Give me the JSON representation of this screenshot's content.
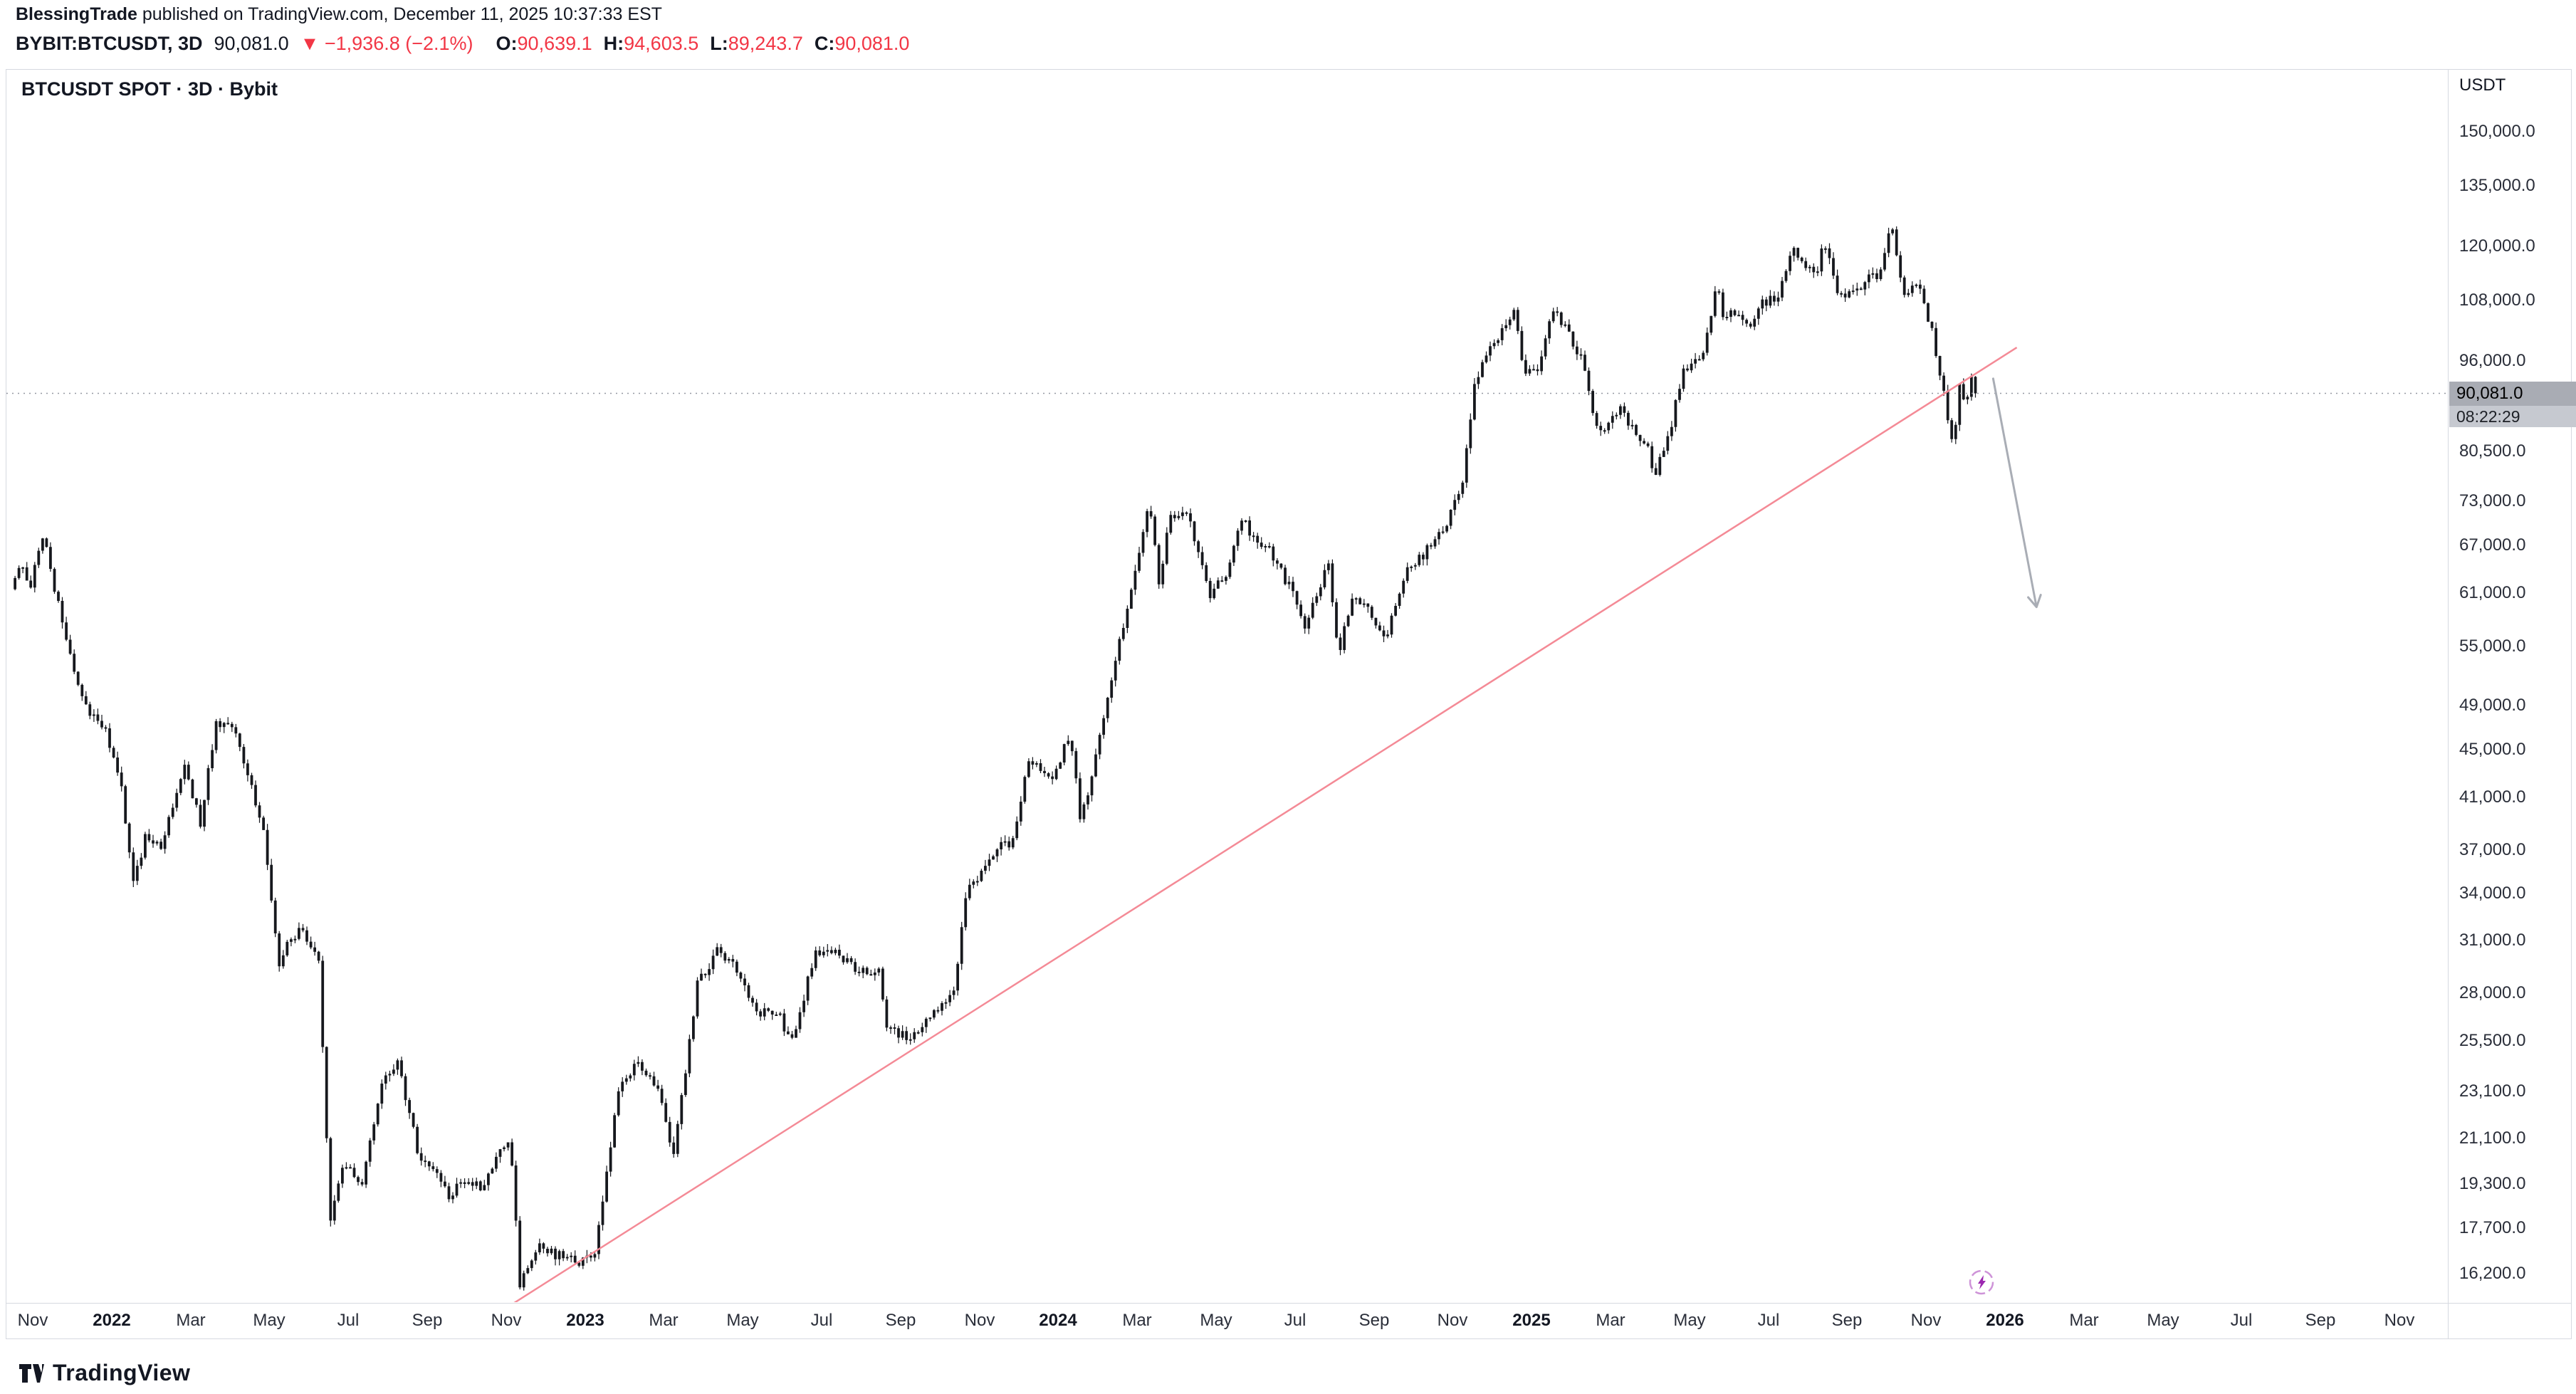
{
  "header": {
    "author": "BlessingTrade",
    "published_text": " published on TradingView.com, December 11, 2025 10:37:33 EST",
    "symbol_line": "BYBIT:BTCUSDT, 3D",
    "last_price": "90,081.0",
    "down_arrow": "▼",
    "change": "−1,936.8 (−2.1%)",
    "ohlc": [
      {
        "label": "O",
        "value": "90,639.1"
      },
      {
        "label": "H",
        "value": "94,603.5"
      },
      {
        "label": "L",
        "value": "89,243.7"
      },
      {
        "label": "C",
        "value": "90,081.0"
      }
    ]
  },
  "chart": {
    "title": "BTCUSDT SPOT · 3D · Bybit",
    "axis_currency": "USDT",
    "price_badge": {
      "price": "90,081.0",
      "countdown": "08:22:29"
    },
    "colors": {
      "down_red": "#f23645",
      "candle": "#16181d",
      "trendline": "#f48a96",
      "arrow": "#a9adb5",
      "last_price_line": "#9598a1",
      "boost_purple": "#9c27b0",
      "axis_text": "#2a2e39",
      "border": "#d6d9e0"
    }
  },
  "footer": {
    "logo_text": "TradingView"
  },
  "chart_data": {
    "type": "candlestick",
    "symbol": "BYBIT:BTCUSDT",
    "exchange": "Bybit",
    "market": "SPOT",
    "interval": "3D",
    "scale": "log",
    "last_price": 90081,
    "ylim": [
      14270,
      169600
    ],
    "y_ticks": [
      150000,
      135000,
      120000,
      108000,
      96000,
      80500,
      73000,
      67000,
      61000,
      55000,
      49000,
      45000,
      41000,
      37000,
      34000,
      31000,
      28000,
      25500,
      23100,
      21100,
      19300,
      17700,
      16200
    ],
    "x_ticks": [
      {
        "label": "Nov",
        "m": 0
      },
      {
        "label": "2022",
        "m": 2,
        "year": true
      },
      {
        "label": "Mar",
        "m": 4
      },
      {
        "label": "May",
        "m": 6
      },
      {
        "label": "Jul",
        "m": 8
      },
      {
        "label": "Sep",
        "m": 10
      },
      {
        "label": "Nov",
        "m": 12
      },
      {
        "label": "2023",
        "m": 14,
        "year": true
      },
      {
        "label": "Mar",
        "m": 16
      },
      {
        "label": "May",
        "m": 18
      },
      {
        "label": "Jul",
        "m": 20
      },
      {
        "label": "Sep",
        "m": 22
      },
      {
        "label": "Nov",
        "m": 24
      },
      {
        "label": "2024",
        "m": 26,
        "year": true
      },
      {
        "label": "Mar",
        "m": 28
      },
      {
        "label": "May",
        "m": 30
      },
      {
        "label": "Jul",
        "m": 32
      },
      {
        "label": "Sep",
        "m": 34
      },
      {
        "label": "Nov",
        "m": 36
      },
      {
        "label": "2025",
        "m": 38,
        "year": true
      },
      {
        "label": "Mar",
        "m": 40
      },
      {
        "label": "May",
        "m": 42
      },
      {
        "label": "Jul",
        "m": 44
      },
      {
        "label": "Sep",
        "m": 46
      },
      {
        "label": "Nov",
        "m": 48
      },
      {
        "label": "2026",
        "m": 50,
        "year": true
      },
      {
        "label": "Mar",
        "m": 52
      },
      {
        "label": "May",
        "m": 54
      },
      {
        "label": "Jul",
        "m": 56
      },
      {
        "label": "Sep",
        "m": 58
      },
      {
        "label": "Nov",
        "m": 60
      }
    ],
    "path": [
      [
        -0.5,
        61500
      ],
      [
        -0.25,
        64500
      ],
      [
        0,
        62000
      ],
      [
        0.3,
        68500
      ],
      [
        0.8,
        57500
      ],
      [
        1.3,
        49500
      ],
      [
        1.9,
        46500
      ],
      [
        2.3,
        42000
      ],
      [
        2.6,
        34500
      ],
      [
        2.9,
        38000
      ],
      [
        3.3,
        37000
      ],
      [
        3.9,
        43500
      ],
      [
        4.3,
        39000
      ],
      [
        4.7,
        47800
      ],
      [
        5.2,
        46500
      ],
      [
        5.9,
        38500
      ],
      [
        6.3,
        29500
      ],
      [
        6.6,
        31300
      ],
      [
        6.9,
        31600
      ],
      [
        7.3,
        29500
      ],
      [
        7.6,
        17900
      ],
      [
        7.9,
        20000
      ],
      [
        8.4,
        19300
      ],
      [
        8.9,
        23300
      ],
      [
        9.3,
        24500
      ],
      [
        9.9,
        20000
      ],
      [
        10.3,
        19800
      ],
      [
        10.6,
        18800
      ],
      [
        10.9,
        19400
      ],
      [
        11.4,
        19200
      ],
      [
        11.9,
        20500
      ],
      [
        12.15,
        21000
      ],
      [
        12.4,
        15900
      ],
      [
        12.9,
        17000
      ],
      [
        13.4,
        16800
      ],
      [
        13.9,
        16550
      ],
      [
        14.3,
        16900
      ],
      [
        14.9,
        23000
      ],
      [
        15.4,
        24600
      ],
      [
        15.9,
        23200
      ],
      [
        16.3,
        20300
      ],
      [
        16.9,
        28400
      ],
      [
        17.4,
        30300
      ],
      [
        17.9,
        29300
      ],
      [
        18.4,
        26900
      ],
      [
        18.9,
        27100
      ],
      [
        19.3,
        25400
      ],
      [
        19.9,
        30400
      ],
      [
        20.4,
        30300
      ],
      [
        20.9,
        29200
      ],
      [
        21.5,
        29100
      ],
      [
        21.7,
        26100
      ],
      [
        21.9,
        25900
      ],
      [
        22.4,
        25700
      ],
      [
        22.9,
        26950
      ],
      [
        23.4,
        28200
      ],
      [
        23.75,
        34600
      ],
      [
        23.9,
        34500
      ],
      [
        24.4,
        36900
      ],
      [
        24.9,
        37700
      ],
      [
        25.3,
        43900
      ],
      [
        25.9,
        42300
      ],
      [
        26.35,
        46600
      ],
      [
        26.6,
        39700
      ],
      [
        26.9,
        42600
      ],
      [
        27.4,
        51800
      ],
      [
        27.9,
        61500
      ],
      [
        28.35,
        73000
      ],
      [
        28.6,
        62500
      ],
      [
        28.9,
        71000
      ],
      [
        29.35,
        70500
      ],
      [
        29.9,
        60700
      ],
      [
        30.3,
        63200
      ],
      [
        30.75,
        71000
      ],
      [
        30.9,
        67800
      ],
      [
        31.4,
        66500
      ],
      [
        31.9,
        61800
      ],
      [
        32.3,
        57200
      ],
      [
        32.9,
        64800
      ],
      [
        33.15,
        53800
      ],
      [
        33.5,
        61000
      ],
      [
        33.9,
        59000
      ],
      [
        34.3,
        55500
      ],
      [
        34.9,
        63500
      ],
      [
        35.4,
        66500
      ],
      [
        35.75,
        68500
      ],
      [
        35.9,
        70000
      ],
      [
        36.3,
        76000
      ],
      [
        36.6,
        91500
      ],
      [
        36.9,
        96500
      ],
      [
        37.25,
        101000
      ],
      [
        37.6,
        106800
      ],
      [
        37.8,
        96500
      ],
      [
        37.9,
        93500
      ],
      [
        38.25,
        94500
      ],
      [
        38.6,
        106000
      ],
      [
        38.9,
        102000
      ],
      [
        39.3,
        96500
      ],
      [
        39.75,
        82500
      ],
      [
        39.9,
        84300
      ],
      [
        40.3,
        87500
      ],
      [
        40.7,
        83000
      ],
      [
        40.9,
        82500
      ],
      [
        41.2,
        76800
      ],
      [
        41.6,
        85000
      ],
      [
        41.9,
        94500
      ],
      [
        42.4,
        97000
      ],
      [
        42.55,
        103500
      ],
      [
        42.75,
        110500
      ],
      [
        42.9,
        104600
      ],
      [
        43.3,
        105500
      ],
      [
        43.55,
        101500
      ],
      [
        43.9,
        107200
      ],
      [
        44.35,
        109500
      ],
      [
        44.65,
        119500
      ],
      [
        44.9,
        116000
      ],
      [
        45.3,
        114500
      ],
      [
        45.45,
        122500
      ],
      [
        45.8,
        109500
      ],
      [
        45.9,
        108500
      ],
      [
        46.3,
        110800
      ],
      [
        46.6,
        112500
      ],
      [
        46.9,
        114200
      ],
      [
        47.15,
        125500
      ],
      [
        47.5,
        108000
      ],
      [
        47.75,
        111500
      ],
      [
        47.9,
        110000
      ],
      [
        48.2,
        101500
      ],
      [
        48.45,
        92000
      ],
      [
        48.73,
        81800
      ],
      [
        48.9,
        91500
      ],
      [
        49.05,
        87000
      ],
      [
        49.2,
        93200
      ],
      [
        49.37,
        90081
      ]
    ],
    "trendline": {
      "from_m": 12.2,
      "from_p": 15300,
      "to_m": 50.3,
      "to_p": 98500
    },
    "projection_arrow": {
      "from_m": 49.7,
      "from_p": 92700,
      "to_m": 50.8,
      "to_p": 59400
    },
    "boost_icon": {
      "m": 49.4,
      "p": 15940
    }
  }
}
